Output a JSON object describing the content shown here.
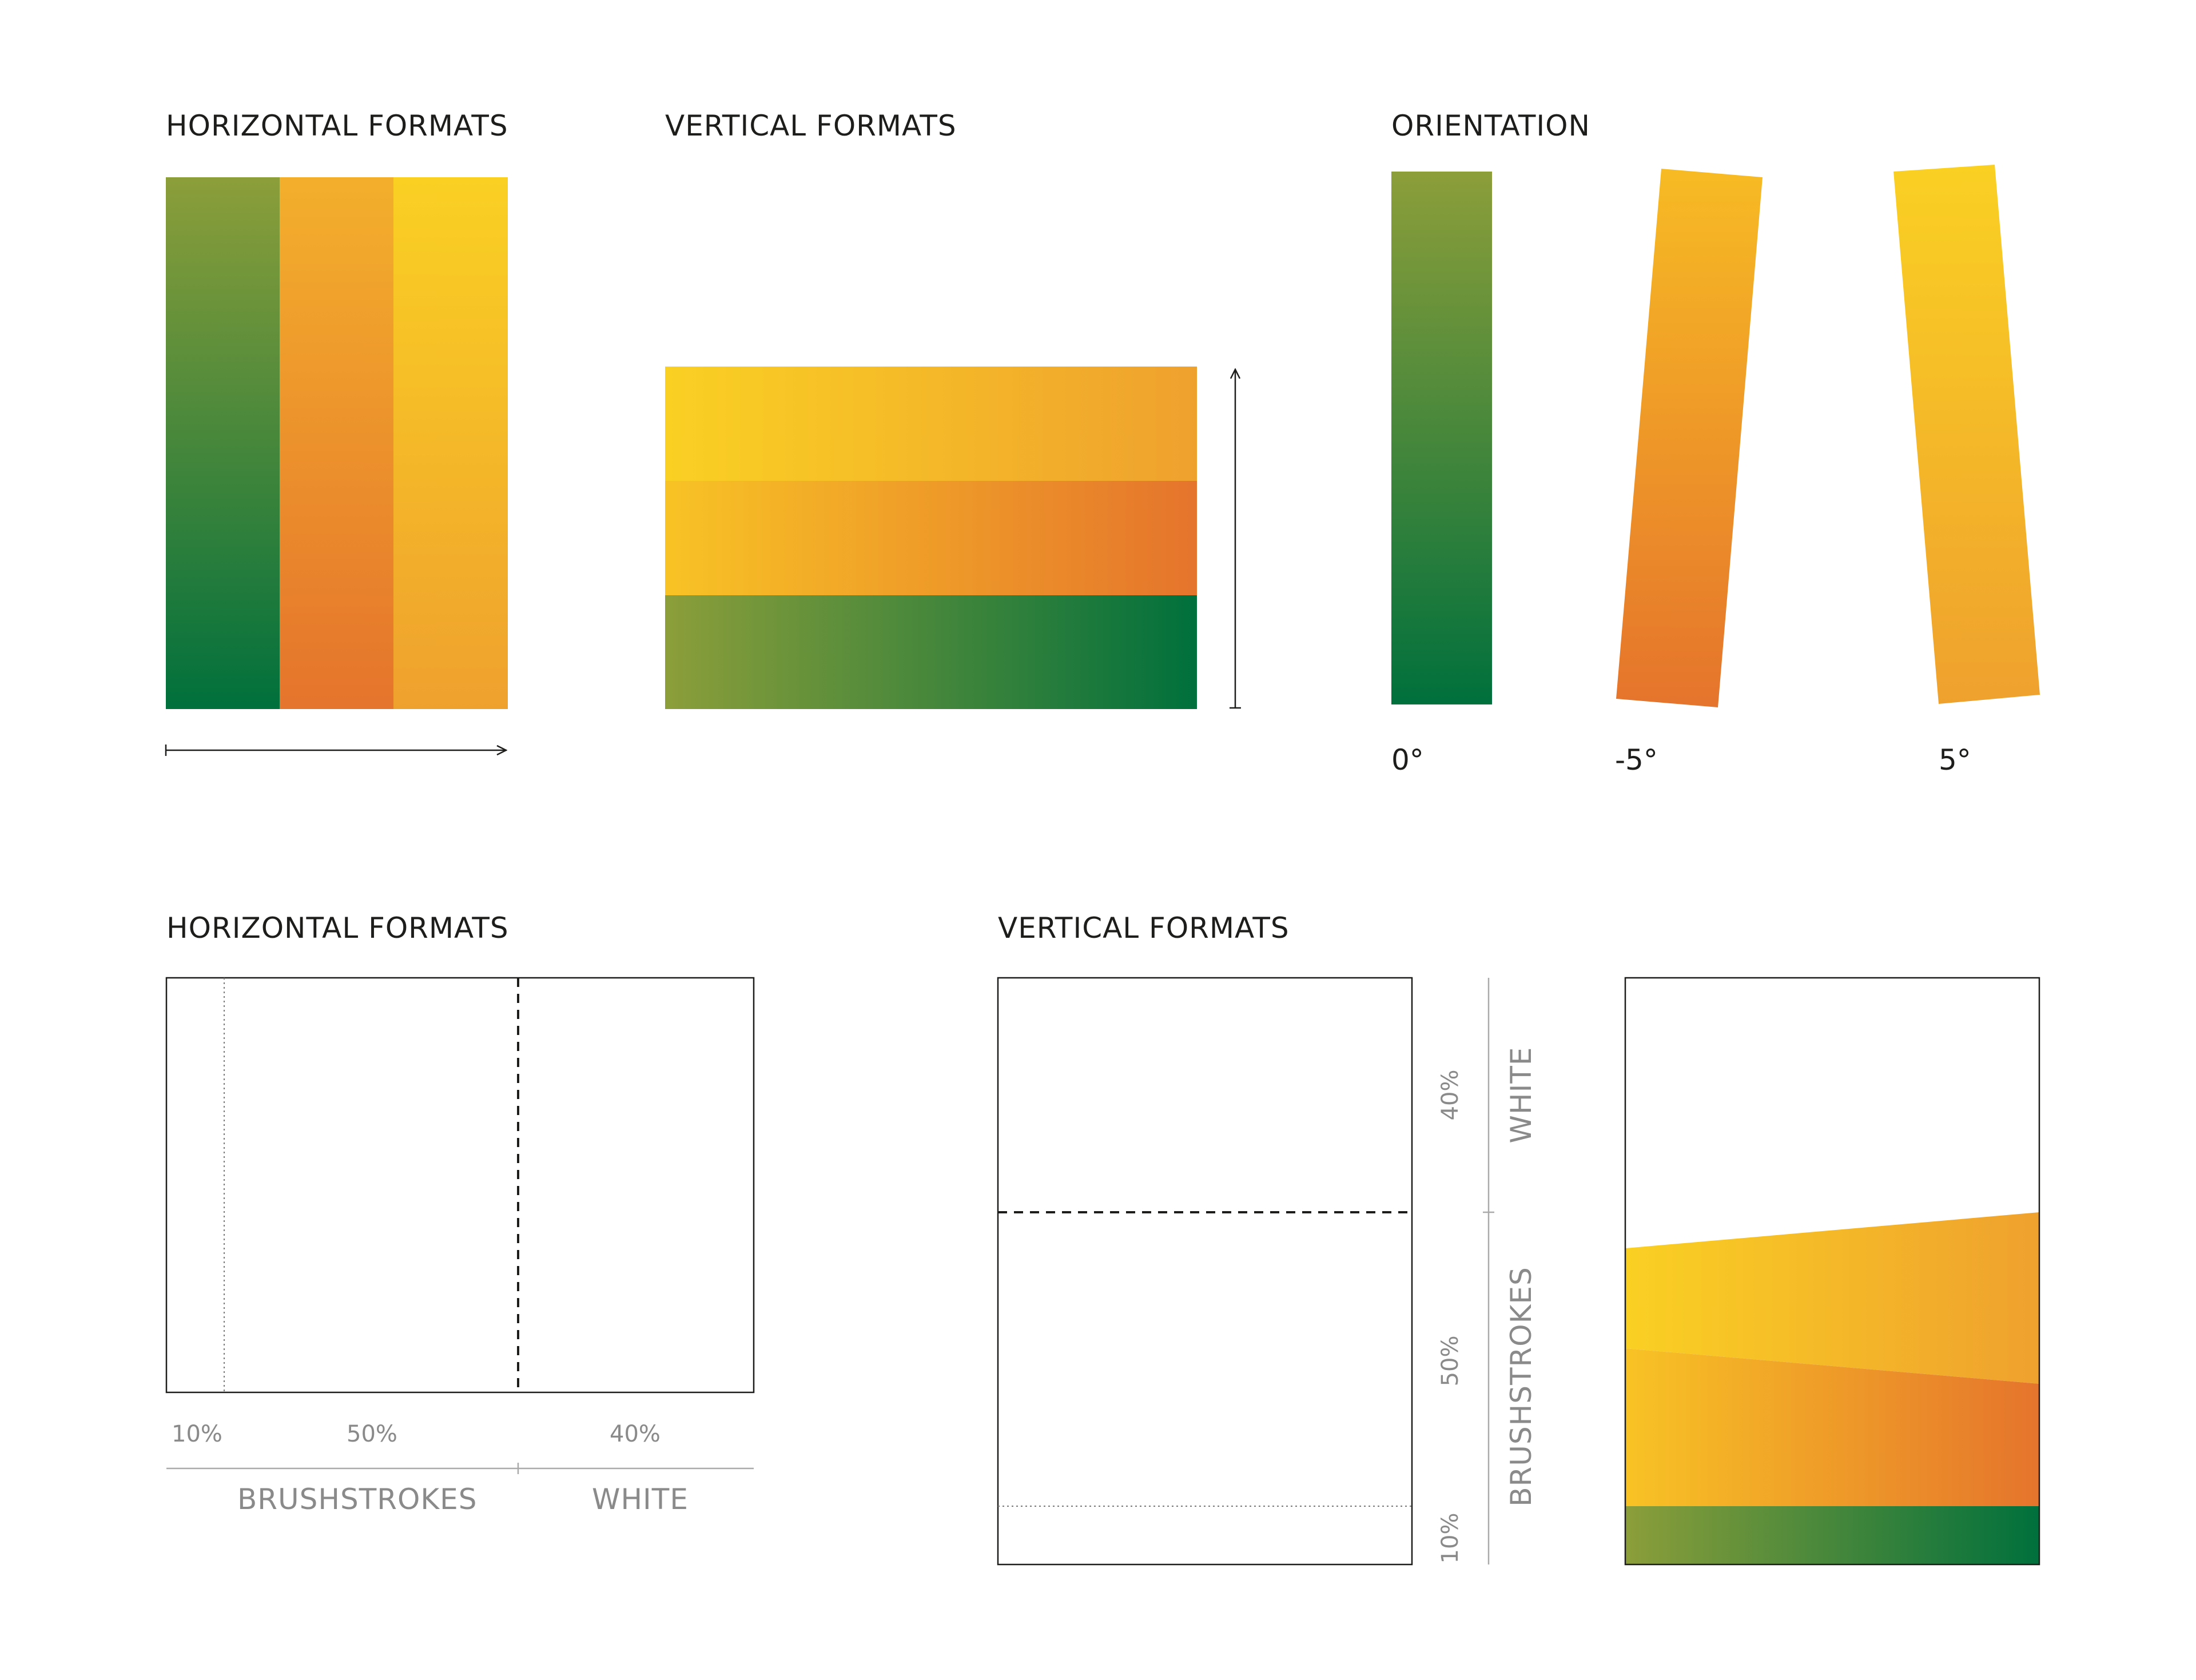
{
  "colors": {
    "green_olive": "#8C9E3A",
    "green_dark": "#00703C",
    "orange_mid": "#F0A830",
    "orange_dark": "#E5742C",
    "yellow": "#FAD023",
    "line": "#1d1d1b",
    "caption_gray": "#8a8a8a"
  },
  "top": {
    "horizontal_formats": {
      "title": "HORIZONTAL FORMATS"
    },
    "vertical_formats": {
      "title": "VERTICAL FORMATS"
    },
    "orientation": {
      "title": "ORIENTATION",
      "angles": [
        "0°",
        "-5°",
        "5°"
      ]
    }
  },
  "bottom": {
    "horizontal_formats": {
      "title": "HORIZONTAL FORMATS",
      "pct_10": "10%",
      "pct_50": "50%",
      "pct_40": "40%",
      "label_brushstrokes": "BRUSHSTROKES",
      "label_white": "WHITE"
    },
    "vertical_formats": {
      "title": "VERTICAL FORMATS",
      "pct_40": "40%",
      "pct_50": "50%",
      "pct_10": "10%",
      "label_white": "WHITE",
      "label_brushstrokes": "BRUSHSTROKES"
    }
  }
}
